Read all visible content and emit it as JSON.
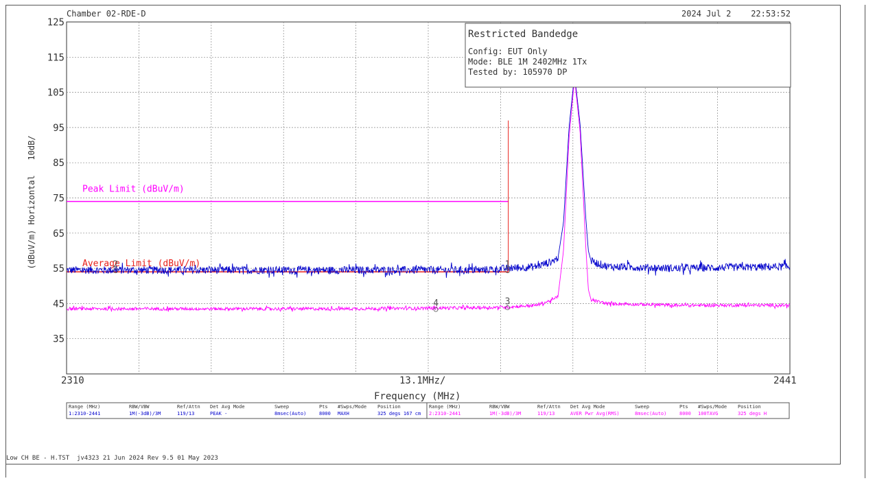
{
  "chart_data": {
    "type": "line",
    "header": {
      "chamber": "Chamber 02-RDE-D",
      "timestamp": "2024 Jul 2    22:53:52"
    },
    "info_box": {
      "title": "Restricted Bandedge",
      "lines": [
        "Config: EUT Only",
        "Mode: BLE 1M 2402MHz 1Tx",
        "Tested by: 105970 DP"
      ]
    },
    "ylabel": "(dBuV/m) Horizontal   10dB/",
    "xlabel": "Frequency (MHz)",
    "x_start_label": "2310",
    "x_end_label": "2441",
    "x_div_label": "13.1MHz/",
    "xlim": [
      2310,
      2441
    ],
    "ylim": [
      25,
      125
    ],
    "yticks": [
      125,
      115,
      105,
      95,
      85,
      75,
      65,
      55,
      45,
      35
    ],
    "grid": true,
    "band_edge_mhz": 2390,
    "limits": [
      {
        "name": "Peak Limit (dBuV/m)",
        "value": 74,
        "x_start": 2310,
        "x_end": 2390,
        "color": "#ff00ff"
      },
      {
        "name": "Average Limit (dBuV/m)",
        "value": 54,
        "x_start": 2310,
        "x_end": 2390,
        "color": "#e8201a"
      }
    ],
    "series": [
      {
        "type": "peak",
        "color": "#0000cc",
        "points": [
          [
            2310,
            54.5
          ],
          [
            2330,
            54.5
          ],
          [
            2360,
            54.5
          ],
          [
            2385,
            54.5
          ],
          [
            2390,
            55
          ],
          [
            2395,
            55.5
          ],
          [
            2398,
            57
          ],
          [
            2399,
            58
          ],
          [
            2400,
            68
          ],
          [
            2401,
            95
          ],
          [
            2402,
            110
          ],
          [
            2403,
            96
          ],
          [
            2404,
            70
          ],
          [
            2404.5,
            60
          ],
          [
            2405,
            57
          ],
          [
            2408,
            55.5
          ],
          [
            2420,
            55
          ],
          [
            2441,
            55.5
          ]
        ]
      },
      {
        "type": "average",
        "color": "#ff00ff",
        "points": [
          [
            2310,
            43.5
          ],
          [
            2330,
            43.5
          ],
          [
            2360,
            43.5
          ],
          [
            2385,
            43.8
          ],
          [
            2390,
            44
          ],
          [
            2395,
            44.5
          ],
          [
            2398,
            46
          ],
          [
            2399,
            47
          ],
          [
            2400,
            60
          ],
          [
            2401,
            92
          ],
          [
            2402,
            109
          ],
          [
            2403,
            94
          ],
          [
            2404,
            62
          ],
          [
            2404.5,
            49
          ],
          [
            2405,
            46
          ],
          [
            2408,
            45
          ],
          [
            2420,
            44.5
          ],
          [
            2441,
            44.5
          ]
        ]
      }
    ],
    "markers": [
      {
        "label": "1",
        "x": 2390,
        "y": 54.5
      },
      {
        "label": "2",
        "x": 2319,
        "y": 54.5
      },
      {
        "label": "3",
        "x": 2390,
        "y": 44
      },
      {
        "label": "4",
        "x": 2377,
        "y": 43.5
      }
    ]
  },
  "settings_table": {
    "headers": [
      "Range (MHz)",
      "RBW/VBW",
      "Ref/Attn",
      "Det  Avg Mode",
      "Sweep",
      "Pts",
      "#Swps/Mode",
      "Position"
    ],
    "rows": [
      {
        "color": "#0000cc",
        "cells": [
          "1:2310-2441",
          "1M(-3dB)/3M",
          "119/13",
          "PEAK  -",
          "8msec(Auto)",
          "8000",
          "MAXH",
          "325 degs 167 cm"
        ]
      },
      {
        "color": "#ff00ff",
        "cells": [
          "2:2310-2441",
          "1M(-3dB)/3M",
          "119/13",
          "AVER Pwr Avg(RMS)",
          "8msec(Auto)",
          "8000",
          "100TAVG",
          "325 degs H"
        ]
      }
    ]
  },
  "footer": "Low CH BE - H.TST  jv4323 21 Jun 2024 Rev 9.5 01 May 2023"
}
